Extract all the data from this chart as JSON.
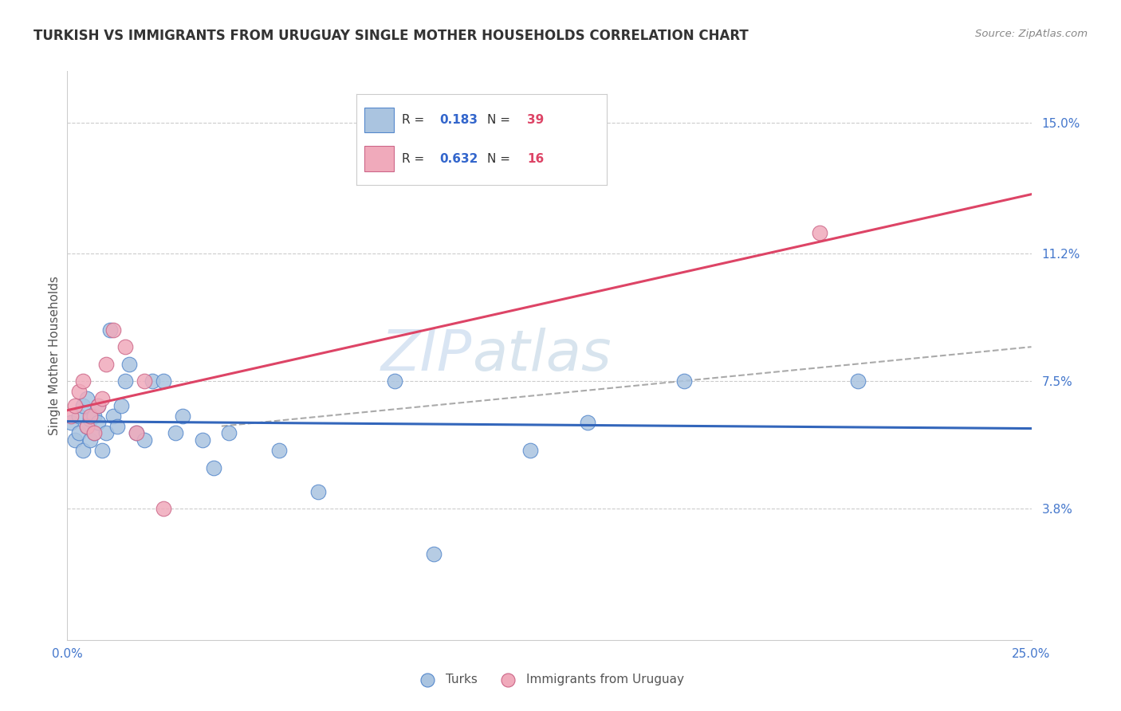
{
  "title": "TURKISH VS IMMIGRANTS FROM URUGUAY SINGLE MOTHER HOUSEHOLDS CORRELATION CHART",
  "source": "Source: ZipAtlas.com",
  "ylabel": "Single Mother Households",
  "xlim": [
    0.0,
    0.25
  ],
  "ylim": [
    0.0,
    0.165
  ],
  "yticks": [
    0.038,
    0.075,
    0.112,
    0.15
  ],
  "ytick_labels": [
    "3.8%",
    "7.5%",
    "11.2%",
    "15.0%"
  ],
  "xticks": [
    0.0,
    0.05,
    0.1,
    0.15,
    0.2,
    0.25
  ],
  "xtick_labels": [
    "0.0%",
    "",
    "",
    "",
    "",
    "25.0%"
  ],
  "turks_x": [
    0.001,
    0.002,
    0.003,
    0.003,
    0.004,
    0.004,
    0.005,
    0.005,
    0.006,
    0.006,
    0.007,
    0.007,
    0.008,
    0.008,
    0.009,
    0.01,
    0.011,
    0.012,
    0.013,
    0.014,
    0.015,
    0.016,
    0.018,
    0.02,
    0.022,
    0.025,
    0.028,
    0.03,
    0.035,
    0.038,
    0.042,
    0.055,
    0.065,
    0.085,
    0.095,
    0.12,
    0.135,
    0.16,
    0.205
  ],
  "turks_y": [
    0.063,
    0.058,
    0.06,
    0.065,
    0.055,
    0.068,
    0.062,
    0.07,
    0.064,
    0.058,
    0.065,
    0.06,
    0.068,
    0.063,
    0.055,
    0.06,
    0.09,
    0.065,
    0.062,
    0.068,
    0.075,
    0.08,
    0.06,
    0.058,
    0.075,
    0.075,
    0.06,
    0.065,
    0.058,
    0.05,
    0.06,
    0.055,
    0.043,
    0.075,
    0.025,
    0.055,
    0.063,
    0.075,
    0.075
  ],
  "uruguay_x": [
    0.001,
    0.002,
    0.003,
    0.004,
    0.005,
    0.006,
    0.007,
    0.008,
    0.009,
    0.01,
    0.012,
    0.015,
    0.018,
    0.02,
    0.025,
    0.195
  ],
  "uruguay_y": [
    0.065,
    0.068,
    0.072,
    0.075,
    0.062,
    0.065,
    0.06,
    0.068,
    0.07,
    0.08,
    0.09,
    0.085,
    0.06,
    0.075,
    0.038,
    0.118
  ],
  "turks_color": "#aac4e0",
  "turks_edge_color": "#5588cc",
  "uruguay_color": "#f0aabb",
  "uruguay_edge_color": "#cc6688",
  "turks_line_color": "#3366bb",
  "uruguay_line_color": "#dd4466",
  "dashed_line_color": "#aaaaaa",
  "R_turks": "0.183",
  "N_turks": "39",
  "R_uruguay": "0.632",
  "N_uruguay": "16",
  "legend_R_color": "#3366cc",
  "legend_N_color": "#dd4466",
  "watermark_zip": "ZIP",
  "watermark_atlas": "atlas",
  "background_color": "#ffffff",
  "grid_color": "#cccccc"
}
